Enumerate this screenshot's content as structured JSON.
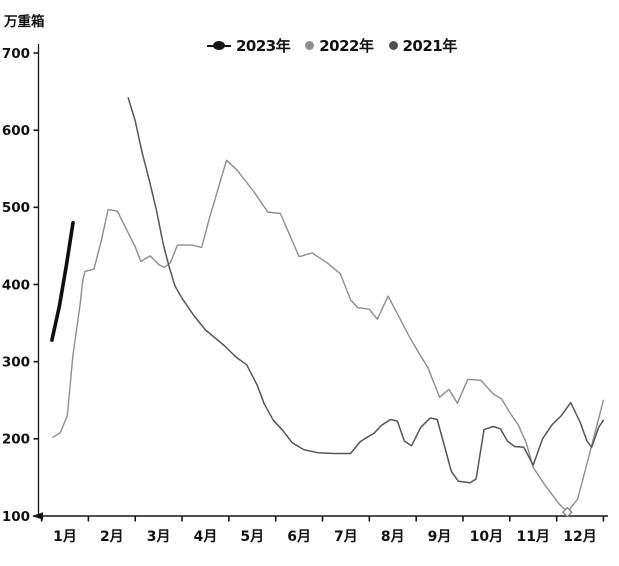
{
  "unit_label": "万重箱",
  "legend": [
    {
      "label": "2023年",
      "color": "#141414",
      "marker": "line-dot"
    },
    {
      "label": "2022年",
      "color": "#8e8e8e",
      "marker": "dot"
    },
    {
      "label": "2021年",
      "color": "#4f4f4f",
      "marker": "dot"
    }
  ],
  "chart_data": {
    "type": "line",
    "title": "",
    "ylabel": "万重箱",
    "xlabel": "",
    "ylim": [
      100,
      700
    ],
    "yticks": [
      700,
      600,
      500,
      400,
      300,
      200,
      100
    ],
    "xticklabels": [
      "1月",
      "2月",
      "3月",
      "4月",
      "5月",
      "6月",
      "7月",
      "8月",
      "9月",
      "10月",
      "11月",
      "12月"
    ],
    "grid": false,
    "legend_position": "top-center",
    "axis_color": "#161616",
    "tick_label_color": "#111111",
    "series": [
      {
        "name": "2023年",
        "color": "#0f0f0f",
        "width": 3.6,
        "points": [
          [
            0.72,
            328
          ],
          [
            0.88,
            372
          ],
          [
            1.03,
            425
          ],
          [
            1.17,
            480
          ]
        ]
      },
      {
        "name": "2022年",
        "color": "#8e8e8e",
        "width": 1.4,
        "marker_point": [
          11.73,
          105
        ],
        "points": [
          [
            0.74,
            202
          ],
          [
            0.9,
            208
          ],
          [
            1.05,
            230
          ],
          [
            1.17,
            309
          ],
          [
            1.25,
            343
          ],
          [
            1.32,
            373
          ],
          [
            1.38,
            406
          ],
          [
            1.43,
            417
          ],
          [
            1.62,
            420
          ],
          [
            1.78,
            458
          ],
          [
            1.92,
            497
          ],
          [
            2.12,
            495
          ],
          [
            2.3,
            473
          ],
          [
            2.5,
            449
          ],
          [
            2.62,
            430
          ],
          [
            2.82,
            437
          ],
          [
            3.0,
            426
          ],
          [
            3.12,
            422
          ],
          [
            3.25,
            428
          ],
          [
            3.4,
            451
          ],
          [
            3.72,
            451
          ],
          [
            3.92,
            448
          ],
          [
            4.08,
            485
          ],
          [
            4.45,
            561
          ],
          [
            4.68,
            548
          ],
          [
            4.82,
            537
          ],
          [
            5.05,
            519
          ],
          [
            5.33,
            494
          ],
          [
            5.6,
            492
          ],
          [
            6.0,
            436
          ],
          [
            6.28,
            441
          ],
          [
            6.6,
            428
          ],
          [
            6.88,
            414
          ],
          [
            7.1,
            380
          ],
          [
            7.25,
            370
          ],
          [
            7.5,
            368
          ],
          [
            7.67,
            355
          ],
          [
            7.9,
            385
          ],
          [
            8.1,
            362
          ],
          [
            8.35,
            333
          ],
          [
            8.55,
            312
          ],
          [
            8.75,
            292
          ],
          [
            9.0,
            254
          ],
          [
            9.2,
            264
          ],
          [
            9.38,
            246
          ],
          [
            9.6,
            277
          ],
          [
            9.88,
            276
          ],
          [
            10.15,
            258
          ],
          [
            10.32,
            252
          ],
          [
            10.5,
            234
          ],
          [
            10.68,
            218
          ],
          [
            10.85,
            195
          ],
          [
            11.0,
            163
          ],
          [
            11.25,
            140
          ],
          [
            11.55,
            116
          ],
          [
            11.73,
            105
          ],
          [
            11.95,
            122
          ],
          [
            12.15,
            168
          ],
          [
            12.35,
            215
          ],
          [
            12.5,
            250
          ]
        ]
      },
      {
        "name": "2021年",
        "color": "#565656",
        "width": 1.5,
        "points": [
          [
            2.35,
            642
          ],
          [
            2.5,
            612
          ],
          [
            2.65,
            570
          ],
          [
            2.8,
            535
          ],
          [
            2.95,
            497
          ],
          [
            3.1,
            452
          ],
          [
            3.22,
            424
          ],
          [
            3.35,
            398
          ],
          [
            3.5,
            382
          ],
          [
            3.75,
            360
          ],
          [
            4.0,
            341
          ],
          [
            4.2,
            331
          ],
          [
            4.4,
            321
          ],
          [
            4.65,
            306
          ],
          [
            4.88,
            296
          ],
          [
            5.1,
            270
          ],
          [
            5.25,
            246
          ],
          [
            5.45,
            224
          ],
          [
            5.65,
            211
          ],
          [
            5.85,
            195
          ],
          [
            6.1,
            186
          ],
          [
            6.4,
            182
          ],
          [
            6.75,
            181
          ],
          [
            7.1,
            181
          ],
          [
            7.3,
            196
          ],
          [
            7.45,
            202
          ],
          [
            7.6,
            207
          ],
          [
            7.75,
            217
          ],
          [
            7.95,
            225
          ],
          [
            8.1,
            223
          ],
          [
            8.25,
            197
          ],
          [
            8.4,
            191
          ],
          [
            8.6,
            215
          ],
          [
            8.8,
            227
          ],
          [
            8.95,
            225
          ],
          [
            9.1,
            192
          ],
          [
            9.25,
            158
          ],
          [
            9.4,
            145
          ],
          [
            9.65,
            143
          ],
          [
            9.78,
            148
          ],
          [
            9.95,
            212
          ],
          [
            10.15,
            216
          ],
          [
            10.3,
            213
          ],
          [
            10.45,
            197
          ],
          [
            10.6,
            190
          ],
          [
            10.8,
            189
          ],
          [
            11.0,
            166
          ],
          [
            11.2,
            200
          ],
          [
            11.4,
            218
          ],
          [
            11.6,
            230
          ],
          [
            11.8,
            247
          ],
          [
            12.0,
            222
          ],
          [
            12.15,
            197
          ],
          [
            12.25,
            189
          ],
          [
            12.4,
            215
          ],
          [
            12.5,
            224
          ]
        ]
      }
    ]
  }
}
